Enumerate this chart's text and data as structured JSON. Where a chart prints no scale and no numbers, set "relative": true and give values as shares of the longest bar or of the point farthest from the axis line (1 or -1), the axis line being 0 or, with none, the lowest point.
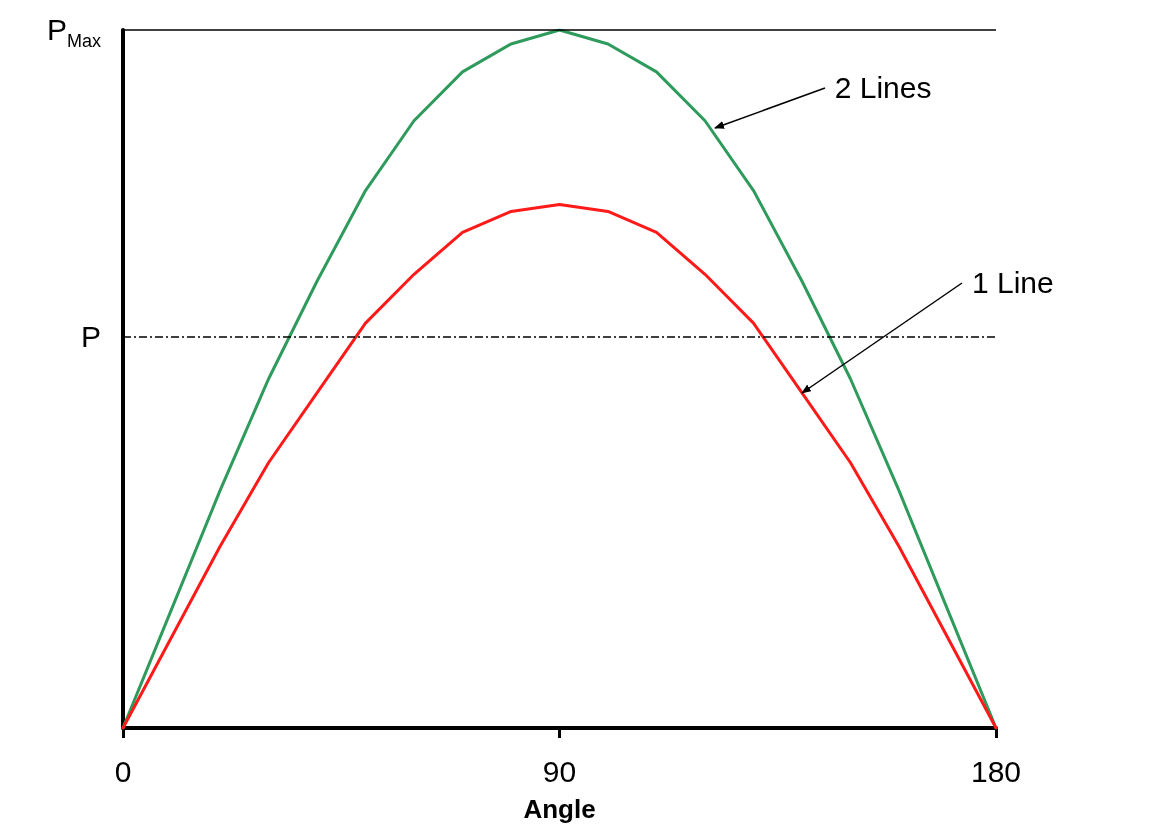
{
  "chart_data": {
    "type": "line",
    "relative": true,
    "xlabel": "Angle",
    "x": [
      0,
      10,
      20,
      30,
      40,
      50,
      60,
      70,
      80,
      90,
      100,
      110,
      120,
      130,
      140,
      150,
      160,
      170,
      180
    ],
    "xlim": [
      0,
      180
    ],
    "xticks": [
      0,
      90,
      180
    ],
    "series": [
      {
        "color": "#2e9a5c",
        "values": [
          0,
          0.17,
          0.34,
          0.5,
          0.64,
          0.77,
          0.87,
          0.94,
          0.98,
          1,
          0.98,
          0.94,
          0.87,
          0.77,
          0.64,
          0.5,
          0.34,
          0.17,
          0
        ]
      },
      {
        "color": "#ff1a1a",
        "values": [
          0,
          0.13,
          0.26,
          0.38,
          0.48,
          0.58,
          0.65,
          0.71,
          0.74,
          0.75,
          0.74,
          0.71,
          0.65,
          0.58,
          0.48,
          0.38,
          0.26,
          0.13,
          0
        ]
      }
    ],
    "annotations": [
      {
        "text": "2 Lines",
        "x": 122,
        "y": 0.86
      },
      {
        "text": "1 Line",
        "x": 140,
        "y": 0.48
      }
    ],
    "ref_lines": [
      {
        "axis": "y",
        "value": 1,
        "label": "P$_{Max}$",
        "line_style": "solid",
        "color": "#000000"
      },
      {
        "axis": "y",
        "value": 0.56,
        "label": "P",
        "line_style": "dashed",
        "color": "#000000"
      }
    ],
    "grid": false,
    "marker": "none",
    "line_style": "solid"
  }
}
